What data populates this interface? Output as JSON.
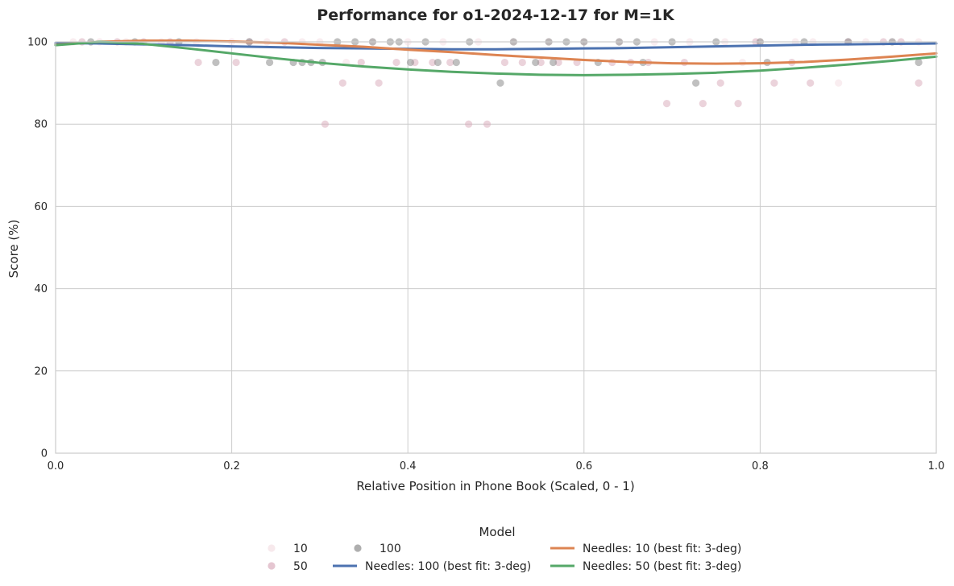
{
  "chart_data": {
    "type": "scatter",
    "title": "Performance for o1-2024-12-17 for M=1K",
    "xlabel": "Relative Position in Phone Book (Scaled, 0 - 1)",
    "ylabel": "Score (%)",
    "xlim": [
      0,
      1
    ],
    "ylim": [
      0,
      100
    ],
    "xticks": [
      "0.0",
      "0.2",
      "0.4",
      "0.6",
      "0.8",
      "1.0"
    ],
    "yticks": [
      "0",
      "20",
      "40",
      "60",
      "80",
      "100"
    ],
    "grid": true,
    "legend": {
      "title": "Model",
      "placement": "bottom-center",
      "entries": [
        "10",
        "50",
        "100",
        "Needles: 100 (best fit: 3-deg)",
        "Needles: 10 (best fit: 3-deg)",
        "Needles: 50 (best fit: 3-deg)"
      ]
    },
    "series": [
      {
        "name": "10",
        "kind": "scatter",
        "color": "#f4dfe4",
        "opacity": 0.55,
        "x": [
          0.02,
          0.05,
          0.08,
          0.12,
          0.16,
          0.2,
          0.24,
          0.28,
          0.3,
          0.33,
          0.36,
          0.4,
          0.44,
          0.48,
          0.52,
          0.56,
          0.6,
          0.64,
          0.68,
          0.72,
          0.76,
          0.78,
          0.8,
          0.84,
          0.86,
          0.889,
          0.92,
          0.95,
          0.98
        ],
        "y": [
          100,
          100,
          100,
          100,
          100,
          100,
          100,
          100,
          100,
          95,
          100,
          100,
          100,
          100,
          100,
          100,
          100,
          100,
          100,
          100,
          100,
          95,
          100,
          100,
          100,
          90,
          100,
          100,
          100
        ]
      },
      {
        "name": "50",
        "kind": "scatter",
        "color": "#d7a7b8",
        "opacity": 0.5,
        "x": [
          0.03,
          0.07,
          0.1,
          0.13,
          0.162,
          0.205,
          0.22,
          0.26,
          0.306,
          0.326,
          0.347,
          0.367,
          0.387,
          0.408,
          0.428,
          0.448,
          0.469,
          0.49,
          0.51,
          0.53,
          0.551,
          0.571,
          0.592,
          0.632,
          0.653,
          0.673,
          0.694,
          0.714,
          0.735,
          0.755,
          0.775,
          0.795,
          0.816,
          0.836,
          0.857,
          0.9,
          0.94,
          0.96,
          0.98
        ],
        "y": [
          100,
          100,
          100,
          100,
          95,
          95,
          100,
          100,
          80,
          90,
          95,
          90,
          95,
          95,
          95,
          95,
          80,
          80,
          95,
          95,
          95,
          95,
          95,
          95,
          95,
          95,
          85,
          95,
          85,
          90,
          85,
          100,
          90,
          95,
          90,
          100,
          100,
          100,
          90
        ]
      },
      {
        "name": "100",
        "kind": "scatter",
        "color": "#8c8c8c",
        "opacity": 0.55,
        "x": [
          0.04,
          0.09,
          0.14,
          0.182,
          0.22,
          0.243,
          0.27,
          0.28,
          0.29,
          0.303,
          0.32,
          0.34,
          0.36,
          0.38,
          0.39,
          0.403,
          0.42,
          0.434,
          0.455,
          0.47,
          0.505,
          0.52,
          0.545,
          0.56,
          0.565,
          0.58,
          0.6,
          0.616,
          0.64,
          0.66,
          0.667,
          0.7,
          0.727,
          0.75,
          0.8,
          0.808,
          0.85,
          0.9,
          0.95,
          0.98
        ],
        "y": [
          100,
          100,
          100,
          95,
          100,
          95,
          95,
          95,
          95,
          95,
          100,
          100,
          100,
          100,
          100,
          95,
          100,
          95,
          95,
          100,
          90,
          100,
          95,
          100,
          95,
          100,
          100,
          95,
          100,
          100,
          95,
          100,
          90,
          100,
          100,
          95,
          100,
          100,
          100,
          95
        ]
      },
      {
        "name": "Needles: 100 (best fit: 3-deg)",
        "kind": "line",
        "color": "#4c72b0",
        "x": [
          0,
          0.05,
          0.1,
          0.15,
          0.2,
          0.25,
          0.3,
          0.35,
          0.4,
          0.45,
          0.5,
          0.55,
          0.6,
          0.65,
          0.7,
          0.75,
          0.8,
          0.85,
          0.9,
          0.95,
          1.0
        ],
        "y": [
          99.7,
          99.6,
          99.4,
          99.2,
          98.9,
          98.7,
          98.5,
          98.4,
          98.3,
          98.2,
          98.2,
          98.3,
          98.4,
          98.5,
          98.7,
          98.9,
          99.1,
          99.3,
          99.4,
          99.5,
          99.6
        ]
      },
      {
        "name": "Needles: 10 (best fit: 3-deg)",
        "kind": "line",
        "color": "#dd8452",
        "x": [
          0,
          0.05,
          0.1,
          0.15,
          0.2,
          0.25,
          0.3,
          0.35,
          0.4,
          0.45,
          0.5,
          0.55,
          0.6,
          0.65,
          0.7,
          0.75,
          0.8,
          0.85,
          0.9,
          0.95,
          1.0
        ],
        "y": [
          99.3,
          100.0,
          100.3,
          100.3,
          100.1,
          99.8,
          99.3,
          98.8,
          98.1,
          97.5,
          96.8,
          96.2,
          95.6,
          95.1,
          94.8,
          94.7,
          94.8,
          95.1,
          95.7,
          96.4,
          97.2
        ]
      },
      {
        "name": "Needles: 50 (best fit: 3-deg)",
        "kind": "line",
        "color": "#55a868",
        "x": [
          0,
          0.05,
          0.1,
          0.15,
          0.2,
          0.25,
          0.3,
          0.35,
          0.4,
          0.45,
          0.5,
          0.55,
          0.6,
          0.65,
          0.7,
          0.75,
          0.8,
          0.85,
          0.9,
          0.95,
          1.0
        ],
        "y": [
          99.2,
          100.0,
          99.5,
          98.4,
          97.2,
          96.0,
          94.9,
          94.0,
          93.3,
          92.7,
          92.3,
          92.0,
          91.9,
          92.0,
          92.2,
          92.5,
          93.0,
          93.7,
          94.5,
          95.4,
          96.4
        ]
      }
    ]
  }
}
